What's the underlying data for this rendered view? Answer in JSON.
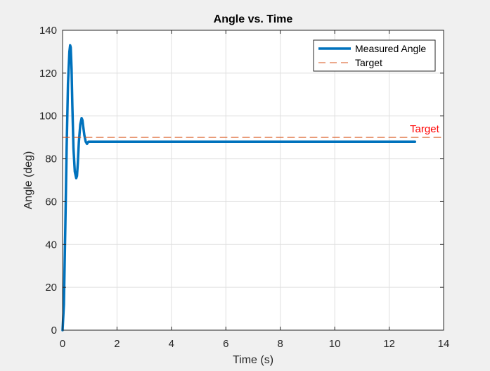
{
  "figure": {
    "background": "#f0f0f0"
  },
  "chart_data": {
    "type": "line",
    "title": "Angle vs. Time",
    "xlabel": "Time (s)",
    "ylabel": "Angle (deg)",
    "xlim": [
      0,
      14
    ],
    "ylim": [
      0,
      140
    ],
    "xticks": [
      0,
      2,
      4,
      6,
      8,
      10,
      12,
      14
    ],
    "yticks": [
      0,
      20,
      40,
      60,
      80,
      100,
      120,
      140
    ],
    "grid": true,
    "legend_position": "top-right",
    "series": [
      {
        "name": "Measured Angle",
        "style": "solid",
        "color": "#0072bd",
        "x": [
          0,
          0.05,
          0.1,
          0.15,
          0.2,
          0.25,
          0.28,
          0.3,
          0.33,
          0.36,
          0.4,
          0.45,
          0.5,
          0.53,
          0.56,
          0.6,
          0.65,
          0.7,
          0.73,
          0.76,
          0.8,
          0.85,
          0.9,
          0.95,
          1.0,
          1.1,
          1.2,
          1.5,
          2,
          4,
          6,
          8,
          10,
          12,
          12.95
        ],
        "y": [
          0,
          12,
          48,
          85,
          115,
          130,
          133,
          132,
          122,
          105,
          85,
          74,
          71,
          72,
          78,
          88,
          96,
          99,
          98,
          95,
          91,
          88,
          87,
          88,
          88,
          88,
          88,
          88,
          88,
          88,
          88,
          88,
          88,
          88,
          88
        ]
      },
      {
        "name": "Target",
        "style": "dashed",
        "color": "#d95319",
        "x": [
          0,
          14
        ],
        "y": [
          90,
          90
        ]
      }
    ],
    "annotations": [
      {
        "text": "Target",
        "x": 13.3,
        "y": 90,
        "color": "#ff0000"
      }
    ]
  }
}
